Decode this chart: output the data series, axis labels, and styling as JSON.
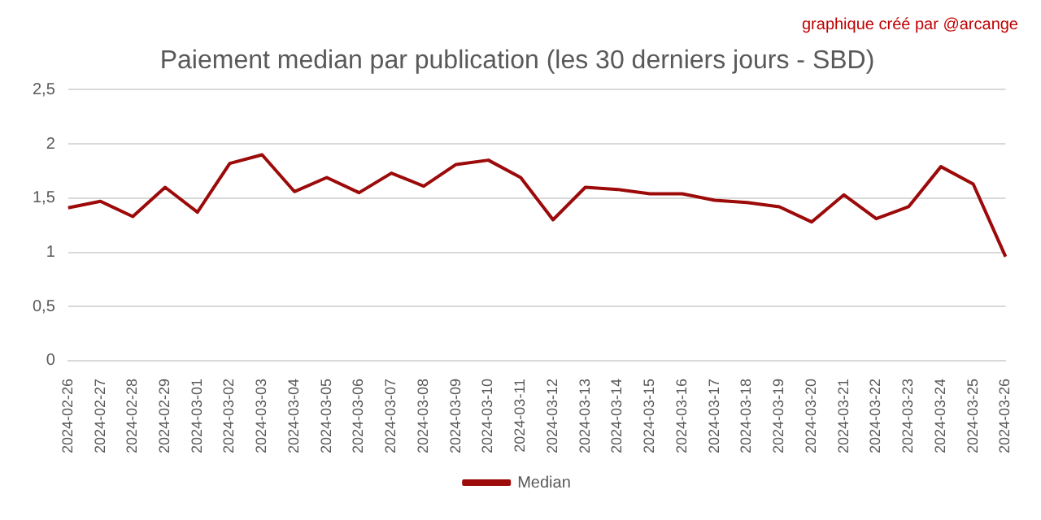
{
  "chart_data": {
    "type": "line",
    "title": "Paiement median par publication (les 30 derniers jours - SBD)",
    "annotations": [
      "graphique créé par @arcange"
    ],
    "categories": [
      "2024-02-26",
      "2024-02-27",
      "2024-02-28",
      "2024-02-29",
      "2024-03-01",
      "2024-03-02",
      "2024-03-03",
      "2024-03-04",
      "2024-03-05",
      "2024-03-06",
      "2024-03-07",
      "2024-03-08",
      "2024-03-09",
      "2024-03-10",
      "2024-03-11",
      "2024-03-12",
      "2024-03-13",
      "2024-03-14",
      "2024-03-15",
      "2024-03-16",
      "2024-03-17",
      "2024-03-18",
      "2024-03-19",
      "2024-03-20",
      "2024-03-21",
      "2024-03-22",
      "2024-03-23",
      "2024-03-24",
      "2024-03-25",
      "2024-03-26"
    ],
    "series": [
      {
        "name": "Median",
        "color": "#9c0a0a",
        "values": [
          1.41,
          1.47,
          1.33,
          1.6,
          1.37,
          1.82,
          1.9,
          1.56,
          1.69,
          1.55,
          1.73,
          1.61,
          1.81,
          1.85,
          1.69,
          1.3,
          1.6,
          1.58,
          1.54,
          1.54,
          1.48,
          1.46,
          1.42,
          1.28,
          1.53,
          1.31,
          1.42,
          1.79,
          1.63,
          0.96
        ]
      }
    ],
    "ylim": [
      0,
      2.5
    ],
    "yticks": [
      0,
      {
        "value": 0.5,
        "label": "0,5"
      },
      1,
      {
        "value": 1.5,
        "label": "1,5"
      },
      2,
      {
        "value": 2.5,
        "label": "2,5"
      }
    ],
    "grid": "y",
    "legend": "bottom",
    "marker": "none",
    "line_style": "solid"
  }
}
